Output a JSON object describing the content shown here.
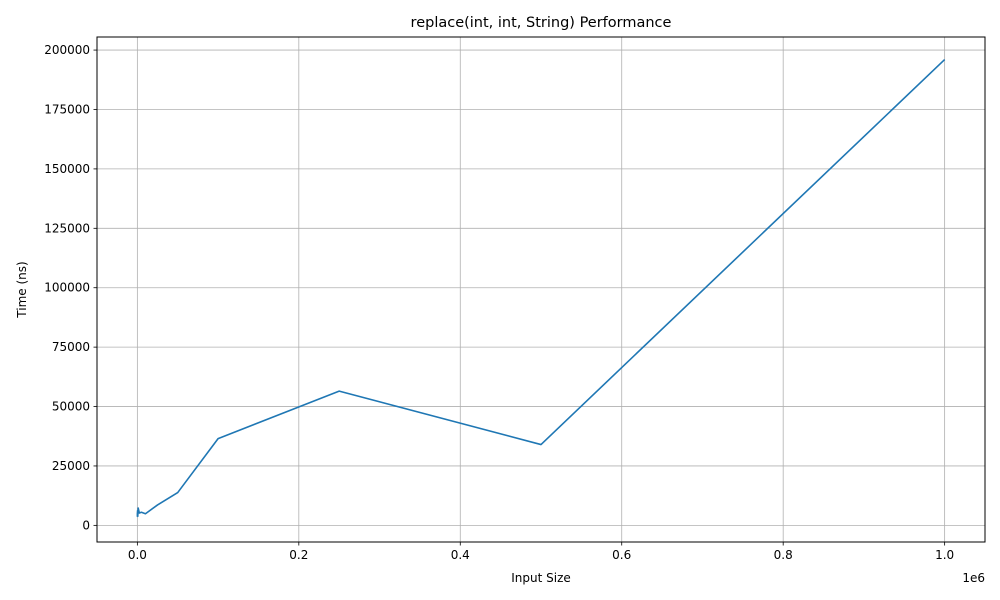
{
  "chart_data": {
    "type": "line",
    "title": "replace(int, int, String) Performance",
    "xlabel": "Input Size",
    "ylabel": "Time (ns)",
    "x_offset_text": "1e6",
    "x_scale": 1000000,
    "xlim": [
      -0.05,
      1.05
    ],
    "ylim": [
      -7000,
      205500
    ],
    "x_ticks": [
      0.0,
      0.2,
      0.4,
      0.6,
      0.8,
      1.0
    ],
    "x_tick_labels": [
      "0.0",
      "0.2",
      "0.4",
      "0.6",
      "0.8",
      "1.0"
    ],
    "y_ticks": [
      0,
      25000,
      50000,
      75000,
      100000,
      125000,
      150000,
      175000,
      200000
    ],
    "y_tick_labels": [
      "0",
      "25000",
      "50000",
      "75000",
      "100000",
      "125000",
      "150000",
      "175000",
      "200000"
    ],
    "grid": true,
    "line_color": "#1f77b4",
    "series": [
      {
        "name": "",
        "x": [
          10,
          50,
          100,
          250,
          500,
          1000,
          2500,
          5000,
          10000,
          25000,
          50000,
          100000,
          250000,
          500000,
          1000000
        ],
        "y": [
          3600,
          5300,
          4500,
          6200,
          3800,
          7300,
          5200,
          5500,
          4900,
          8600,
          13800,
          36500,
          56500,
          34000,
          196000
        ]
      }
    ]
  }
}
